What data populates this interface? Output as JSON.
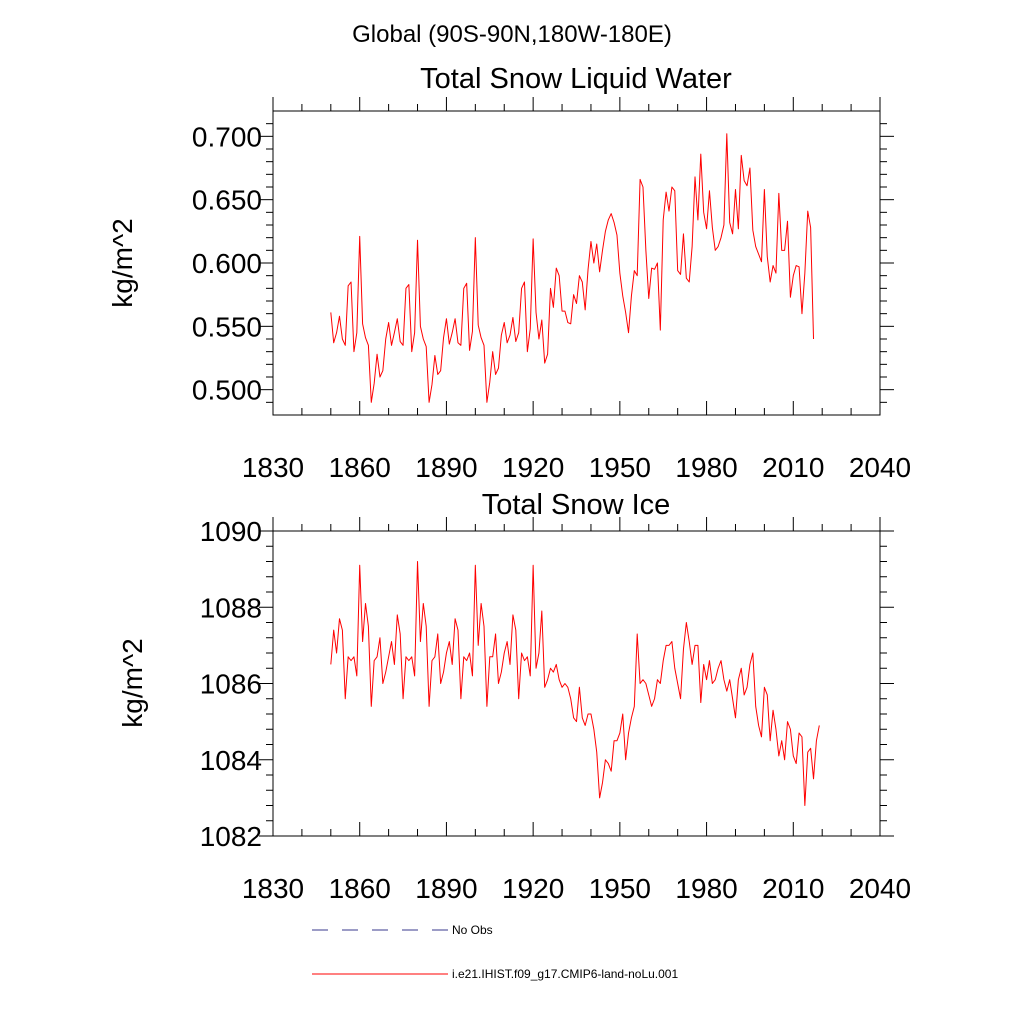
{
  "figure_title": "Global (90S-90N,180W-180E)",
  "legend": [
    {
      "label": "No Obs",
      "color": "#3a3a8c",
      "style": "dashed"
    },
    {
      "label": "i.e21.IHIST.f09_g17.CMIP6-land-noLu.001",
      "color": "#ff0000",
      "style": "solid"
    }
  ],
  "chart_data": [
    {
      "type": "line",
      "title": "Total Snow Liquid Water",
      "xlabel": "",
      "ylabel": "kg/m^2",
      "xlim": [
        1830,
        2040
      ],
      "ylim": [
        0.48,
        0.72
      ],
      "xticks": [
        1830,
        1860,
        1890,
        1920,
        1950,
        1980,
        2010,
        2040
      ],
      "yticks": [
        0.5,
        0.55,
        0.6,
        0.65,
        0.7
      ],
      "ytick_labels": [
        "0.500",
        "0.550",
        "0.600",
        "0.650",
        "0.700"
      ],
      "x_start": 1850,
      "series": [
        {
          "color": "#ff0000",
          "values": [
            0.561,
            0.537,
            0.545,
            0.558,
            0.54,
            0.535,
            0.582,
            0.585,
            0.53,
            0.545,
            0.621,
            0.552,
            0.541,
            0.535,
            0.49,
            0.505,
            0.528,
            0.51,
            0.515,
            0.54,
            0.553,
            0.535,
            0.545,
            0.556,
            0.538,
            0.535,
            0.58,
            0.583,
            0.53,
            0.545,
            0.618,
            0.55,
            0.54,
            0.534,
            0.49,
            0.504,
            0.527,
            0.512,
            0.515,
            0.541,
            0.556,
            0.536,
            0.545,
            0.556,
            0.537,
            0.535,
            0.58,
            0.584,
            0.531,
            0.546,
            0.62,
            0.551,
            0.541,
            0.535,
            0.49,
            0.506,
            0.53,
            0.512,
            0.517,
            0.543,
            0.553,
            0.537,
            0.543,
            0.557,
            0.538,
            0.545,
            0.58,
            0.585,
            0.53,
            0.548,
            0.619,
            0.561,
            0.54,
            0.555,
            0.521,
            0.528,
            0.58,
            0.565,
            0.596,
            0.59,
            0.562,
            0.562,
            0.553,
            0.552,
            0.575,
            0.568,
            0.59,
            0.585,
            0.563,
            0.595,
            0.617,
            0.6,
            0.615,
            0.593,
            0.61,
            0.625,
            0.634,
            0.639,
            0.632,
            0.622,
            0.592,
            0.574,
            0.561,
            0.545,
            0.574,
            0.594,
            0.59,
            0.666,
            0.66,
            0.61,
            0.572,
            0.596,
            0.595,
            0.6,
            0.547,
            0.634,
            0.656,
            0.641,
            0.66,
            0.657,
            0.594,
            0.591,
            0.623,
            0.588,
            0.585,
            0.613,
            0.668,
            0.634,
            0.686,
            0.64,
            0.627,
            0.657,
            0.628,
            0.61,
            0.613,
            0.62,
            0.63,
            0.702,
            0.632,
            0.623,
            0.658,
            0.627,
            0.685,
            0.665,
            0.661,
            0.675,
            0.626,
            0.613,
            0.607,
            0.601,
            0.658,
            0.605,
            0.585,
            0.598,
            0.592,
            0.655,
            0.61,
            0.61,
            0.633,
            0.573,
            0.59,
            0.598,
            0.597,
            0.56,
            0.592,
            0.641,
            0.628,
            0.54
          ]
        }
      ]
    },
    {
      "type": "line",
      "title": "Total Snow Ice",
      "xlabel": "",
      "ylabel": "kg/m^2",
      "xlim": [
        1830,
        2040
      ],
      "ylim": [
        1082,
        1090
      ],
      "xticks": [
        1830,
        1860,
        1890,
        1920,
        1950,
        1980,
        2010,
        2040
      ],
      "yticks": [
        1082,
        1084,
        1086,
        1088,
        1090
      ],
      "ytick_labels": [
        "1082",
        "1084",
        "1086",
        "1088",
        "1090"
      ],
      "x_start": 1850,
      "series": [
        {
          "color": "#ff0000",
          "values": [
            1086.5,
            1087.4,
            1086.8,
            1087.7,
            1087.4,
            1085.6,
            1086.7,
            1086.6,
            1086.7,
            1086.2,
            1089.1,
            1087.1,
            1088.1,
            1087.5,
            1085.4,
            1086.6,
            1086.7,
            1087.2,
            1086.0,
            1086.3,
            1086.7,
            1087.1,
            1086.5,
            1087.8,
            1087.3,
            1085.6,
            1086.7,
            1086.6,
            1086.7,
            1086.2,
            1089.2,
            1087.1,
            1088.1,
            1087.5,
            1085.4,
            1086.6,
            1086.7,
            1087.3,
            1086.0,
            1086.3,
            1086.8,
            1087.1,
            1086.5,
            1087.7,
            1087.4,
            1085.6,
            1086.7,
            1086.6,
            1086.8,
            1086.2,
            1089.1,
            1087.0,
            1088.1,
            1087.5,
            1085.4,
            1086.7,
            1086.7,
            1087.3,
            1086.0,
            1086.3,
            1086.8,
            1087.1,
            1086.5,
            1087.8,
            1087.4,
            1085.6,
            1086.8,
            1086.6,
            1086.7,
            1086.2,
            1089.1,
            1086.4,
            1086.8,
            1087.9,
            1085.9,
            1086.1,
            1086.4,
            1086.3,
            1086.5,
            1086.1,
            1085.9,
            1086.0,
            1085.9,
            1085.6,
            1085.1,
            1085.0,
            1085.9,
            1085.1,
            1084.9,
            1085.2,
            1085.2,
            1084.8,
            1084.2,
            1083.0,
            1083.4,
            1084.0,
            1083.9,
            1083.7,
            1084.5,
            1084.5,
            1084.7,
            1085.2,
            1084.0,
            1084.7,
            1085.1,
            1085.4,
            1087.3,
            1086.0,
            1086.1,
            1086.0,
            1085.7,
            1085.4,
            1085.6,
            1086.1,
            1086.0,
            1086.6,
            1087.0,
            1087.0,
            1087.1,
            1086.4,
            1086.0,
            1085.6,
            1086.9,
            1087.6,
            1087.1,
            1086.5,
            1087.0,
            1087.0,
            1085.5,
            1086.5,
            1086.1,
            1086.6,
            1086.0,
            1086.1,
            1086.4,
            1086.6,
            1086.1,
            1085.8,
            1086.1,
            1085.6,
            1085.1,
            1086.1,
            1086.4,
            1085.7,
            1085.9,
            1086.5,
            1086.8,
            1085.4,
            1084.9,
            1084.6,
            1085.9,
            1085.7,
            1084.5,
            1085.3,
            1084.8,
            1084.1,
            1084.5,
            1084.0,
            1085.0,
            1084.8,
            1084.1,
            1083.9,
            1084.7,
            1084.6,
            1082.8,
            1084.2,
            1084.3,
            1083.5,
            1084.5,
            1084.9
          ]
        }
      ]
    }
  ]
}
